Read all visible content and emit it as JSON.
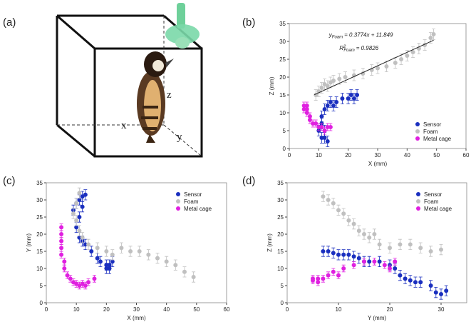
{
  "illustration": {
    "label": "(a)",
    "axis_x": "x",
    "axis_y": "y",
    "axis_z": "z"
  },
  "chart_data": [
    {
      "type": "scatter",
      "label": "(b)",
      "x_label": "X (mm)",
      "y_label": "Z (mm)",
      "xlim": [
        0,
        60
      ],
      "xticks": [
        0,
        10,
        20,
        30,
        40,
        50,
        60
      ],
      "ylim": [
        0,
        35
      ],
      "yticks": [
        0,
        5,
        10,
        15,
        20,
        25,
        30,
        35
      ],
      "legend": "lower right",
      "series": [
        {
          "name": "Sensor",
          "color": "#1a2fbf",
          "x": [
            10,
            11,
            11,
            12,
            12,
            12,
            13,
            14,
            15,
            16,
            18,
            20,
            21,
            22,
            23,
            13,
            11
          ],
          "values": [
            5,
            7,
            9,
            11,
            3,
            5,
            12,
            13,
            12,
            13,
            14,
            14,
            15,
            14,
            15,
            2,
            3
          ],
          "errors": [
            1.5,
            1.5,
            1.5,
            1.5,
            1.5,
            1.5,
            1.5,
            1.5,
            1.5,
            1.5,
            1.5,
            1.5,
            1.5,
            1.5,
            1.5,
            1.5,
            1.5
          ]
        },
        {
          "name": "Foam",
          "color": "#c0c0c0",
          "x": [
            9,
            10,
            11,
            12,
            13,
            14,
            15,
            17,
            19,
            22,
            25,
            28,
            30,
            33,
            36,
            38,
            40,
            42,
            44,
            46,
            48,
            49
          ],
          "values": [
            15,
            16,
            17,
            18,
            17.5,
            18.5,
            19,
            19.5,
            20,
            20.5,
            21,
            22,
            22.5,
            23,
            24,
            25,
            26,
            27,
            28,
            29,
            31,
            32
          ],
          "errors": [
            1.5,
            1.5,
            1.5,
            1.5,
            1.5,
            1.5,
            1.5,
            1.5,
            1.5,
            1.5,
            1.5,
            1.5,
            1.5,
            1.5,
            1.5,
            1.5,
            1.5,
            1.5,
            1.5,
            1.5,
            1.5,
            1.5
          ]
        },
        {
          "name": "Metal cage",
          "color": "#e020e0",
          "x": [
            5,
            5,
            6,
            6,
            7,
            7,
            8,
            9,
            10,
            11,
            12,
            13,
            14,
            6
          ],
          "values": [
            12,
            11,
            10,
            12,
            9,
            8,
            7,
            7,
            6,
            6,
            5,
            6,
            6,
            11
          ],
          "errors": [
            1,
            1,
            1,
            1,
            1,
            1,
            1,
            1,
            1,
            1,
            1,
            1,
            1,
            1
          ]
        }
      ],
      "fit": {
        "slope": 0.3774,
        "intercept": 11.849,
        "x": [
          8.5,
          49
        ]
      },
      "annotations": {
        "eq_y": "y",
        "eq_sub": "Foam",
        "eq_rest": "= 0.3774x + 11.849",
        "r2_r": "R",
        "r2_sup": "2",
        "r2_sub": "Foam",
        "r2_rest": "= 0.9826"
      }
    },
    {
      "type": "scatter",
      "label": "(c)",
      "x_label": "X (mm)",
      "y_label": "Y (mm)",
      "xlim": [
        0,
        60
      ],
      "xticks": [
        0,
        10,
        20,
        30,
        40,
        50,
        60
      ],
      "ylim": [
        0,
        35
      ],
      "yticks": [
        0,
        5,
        10,
        15,
        20,
        25,
        30,
        35
      ],
      "legend": "upper right",
      "series": [
        {
          "name": "Sensor",
          "color": "#1a2fbf",
          "x": [
            9,
            10,
            11,
            12,
            13,
            12,
            11,
            10,
            11,
            12,
            13,
            15,
            17,
            18,
            20,
            21,
            22,
            21,
            20
          ],
          "values": [
            27,
            29,
            30,
            31,
            31.5,
            28,
            25,
            22,
            19,
            18,
            17,
            15,
            13,
            12,
            11,
            11,
            12,
            10,
            10
          ],
          "errors": [
            1.5,
            1.5,
            1.5,
            1.5,
            1.5,
            1.5,
            1.5,
            1.5,
            1.5,
            1.5,
            1.5,
            1.5,
            1.5,
            1.5,
            1.5,
            1.5,
            1.5,
            1.5,
            1.5
          ]
        },
        {
          "name": "Foam",
          "color": "#c0c0c0",
          "x": [
            9,
            10,
            11,
            10,
            11,
            12,
            14,
            17,
            20,
            22,
            25,
            28,
            31,
            34,
            37,
            40,
            43,
            46,
            49
          ],
          "values": [
            26,
            29,
            32,
            24,
            21,
            19,
            17,
            16,
            15,
            14,
            16,
            15,
            15,
            14,
            13,
            12,
            11,
            9,
            7.5
          ],
          "errors": [
            1.5,
            1.5,
            1.5,
            1.5,
            1.5,
            1.5,
            1.5,
            1.5,
            1.5,
            1.5,
            1.5,
            1.5,
            1.5,
            1.5,
            1.5,
            1.5,
            1.5,
            1.5,
            1.5
          ]
        },
        {
          "name": "Metal cage",
          "color": "#e020e0",
          "x": [
            5,
            5,
            5,
            5,
            6,
            6,
            7,
            8,
            9,
            10,
            11,
            12,
            13,
            14,
            16,
            5
          ],
          "values": [
            20,
            18,
            16,
            14,
            12,
            10,
            8,
            7,
            6,
            5.5,
            5,
            5.5,
            5,
            6,
            7,
            22
          ],
          "errors": [
            1,
            1,
            1,
            1,
            1,
            1,
            1,
            1,
            1,
            1,
            1,
            1,
            1,
            1,
            1,
            1
          ]
        }
      ]
    },
    {
      "type": "scatter",
      "label": "(d)",
      "x_label": "Y (mm)",
      "y_label": "Z (mm)",
      "xlim": [
        0,
        35
      ],
      "xticks": [
        0,
        10,
        20,
        30
      ],
      "ylim": [
        0,
        35
      ],
      "yticks": [
        0,
        5,
        10,
        15,
        20,
        25,
        30,
        35
      ],
      "legend": "upper right",
      "series": [
        {
          "name": "Sensor",
          "color": "#1a2fbf",
          "x": [
            7,
            8,
            9,
            10,
            11,
            12,
            13,
            14,
            15,
            16,
            18,
            20,
            21,
            22,
            23,
            24,
            25,
            26,
            28,
            29,
            30,
            31
          ],
          "values": [
            15,
            15,
            14.5,
            14,
            14,
            14,
            13.5,
            13,
            12,
            12,
            12,
            11,
            10,
            8,
            7,
            6.5,
            6,
            6,
            5,
            3,
            2.5,
            3.5
          ],
          "errors": [
            1.5,
            1.5,
            1.5,
            1.5,
            1.5,
            1.5,
            1.5,
            1.5,
            1.5,
            1.5,
            1.5,
            1.5,
            1.5,
            1.5,
            1.5,
            1.5,
            1.5,
            1.5,
            1.5,
            1.5,
            1.5,
            1.5
          ]
        },
        {
          "name": "Foam",
          "color": "#c0c0c0",
          "x": [
            7,
            8,
            9,
            10,
            11,
            12,
            13,
            14,
            15,
            16,
            17,
            18,
            20,
            22,
            24,
            26,
            28,
            30
          ],
          "values": [
            31,
            30,
            29,
            27,
            26,
            24,
            23,
            21,
            20,
            19,
            20,
            17,
            16,
            17,
            17,
            16,
            15,
            15.5
          ],
          "errors": [
            1.5,
            1.5,
            1.5,
            1.5,
            1.5,
            1.5,
            1.5,
            1.5,
            1.5,
            1.5,
            1.5,
            1.5,
            1.5,
            1.5,
            1.5,
            1.5,
            1.5,
            1.5
          ]
        },
        {
          "name": "Metal cage",
          "color": "#e020e0",
          "x": [
            5,
            5,
            6,
            6,
            7,
            8,
            9,
            10,
            11,
            13,
            15,
            17,
            19,
            20,
            21
          ],
          "values": [
            7,
            6.5,
            6,
            7,
            7,
            8,
            9,
            8,
            10,
            11,
            12,
            12,
            11,
            10,
            12
          ],
          "errors": [
            1,
            1,
            1,
            1,
            1,
            1,
            1,
            1,
            1,
            1,
            1,
            1,
            1,
            1,
            1
          ]
        }
      ]
    }
  ]
}
